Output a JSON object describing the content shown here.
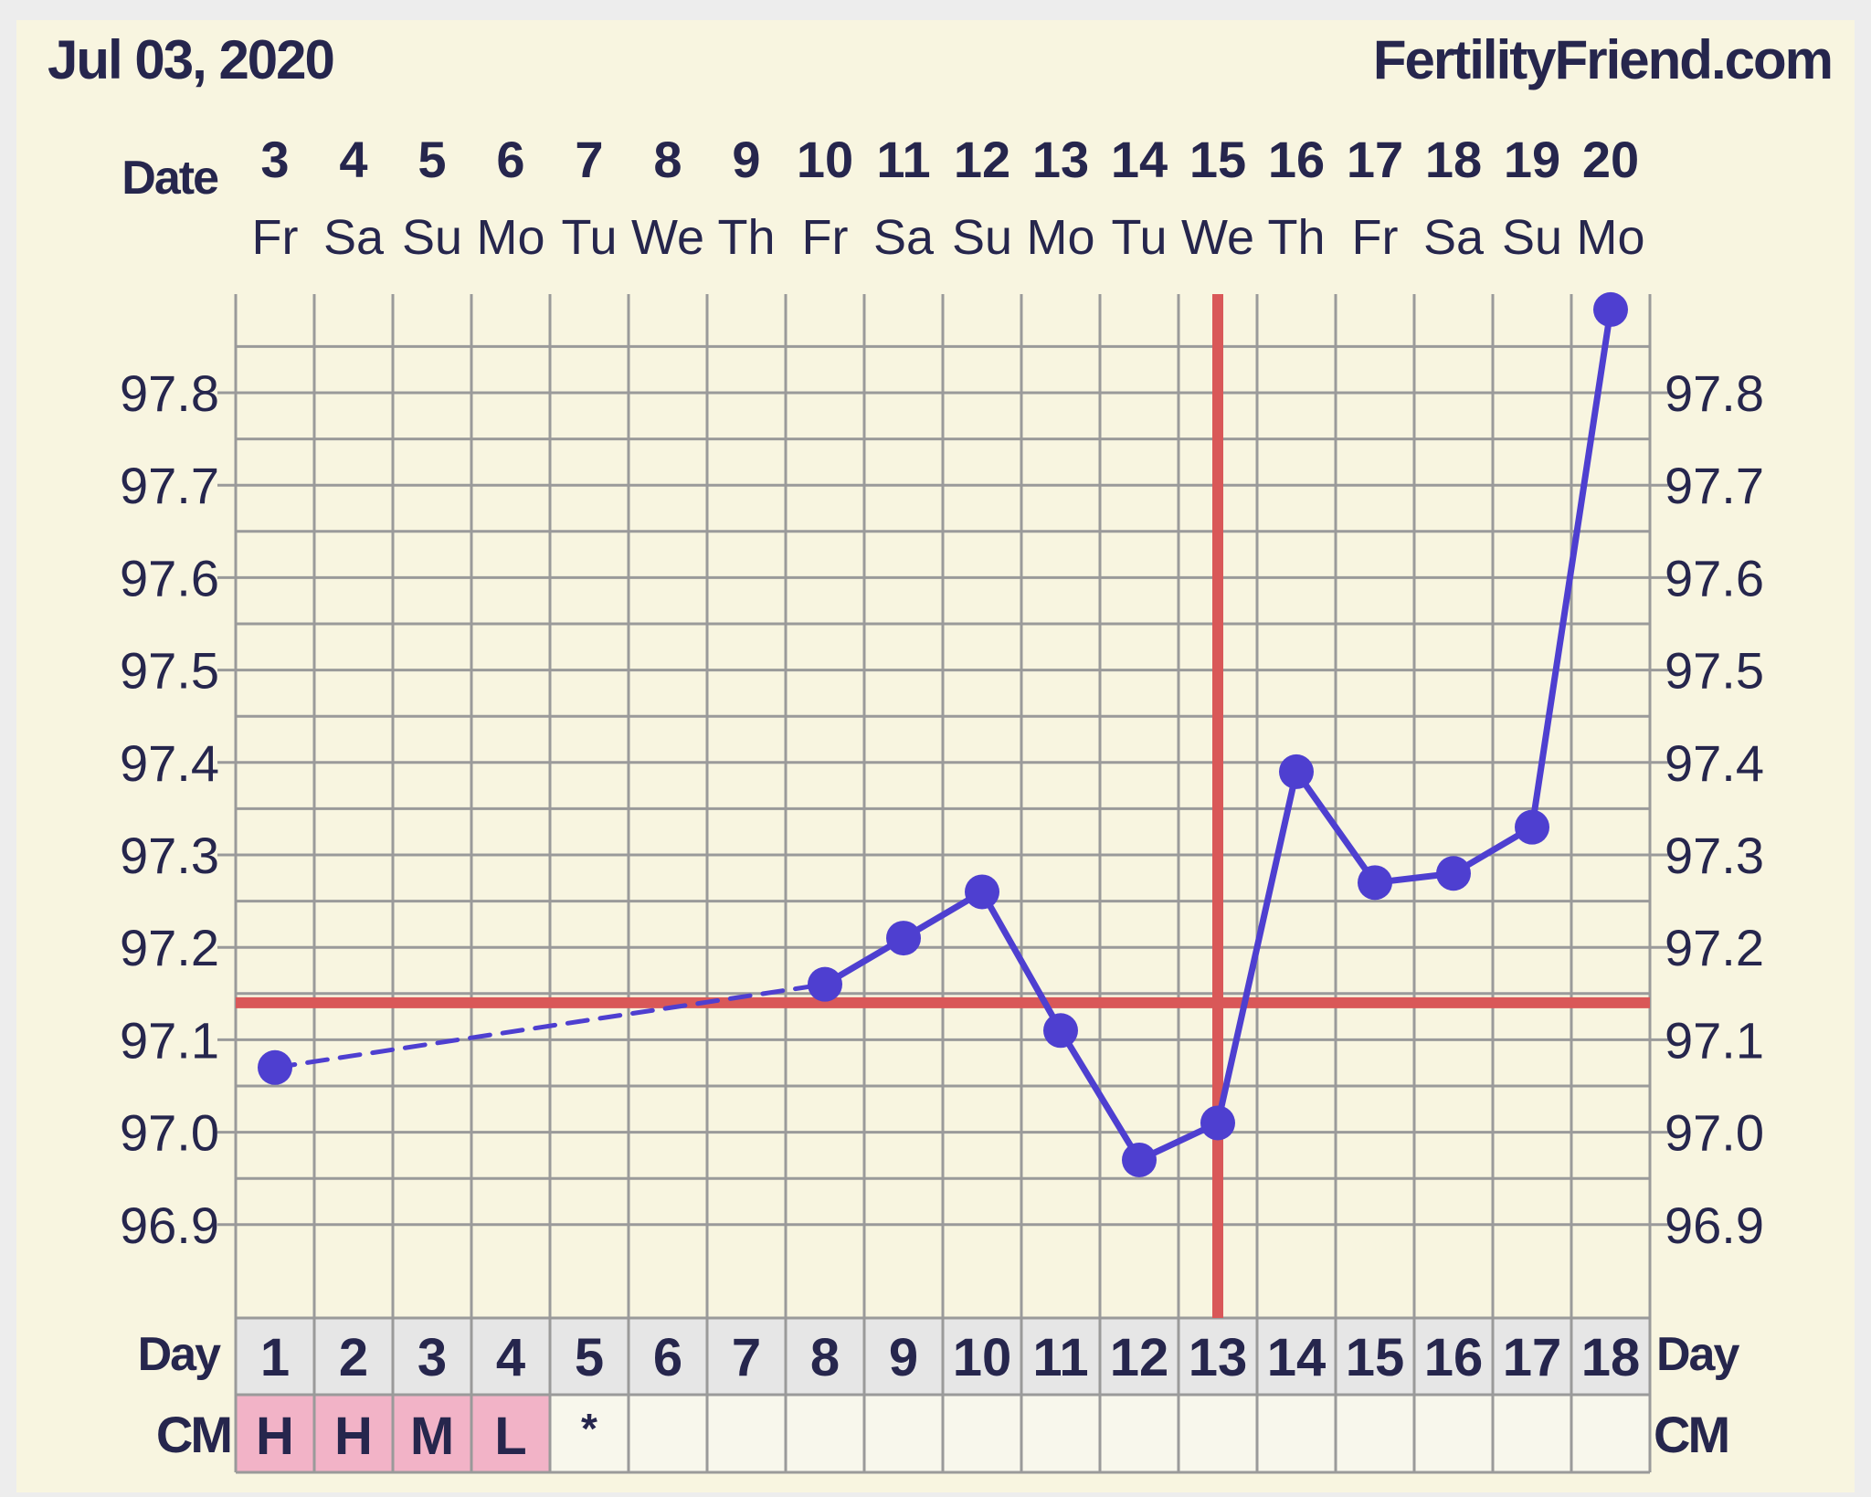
{
  "header": {
    "date": "Jul 03, 2020",
    "site": "FertilityFriend.com"
  },
  "labels": {
    "date_row": "Date",
    "day_row": "Day",
    "cm_row": "CM"
  },
  "colors": {
    "panel": "#f8f5e0",
    "frame": "#ededed",
    "grid": "#9a9a9a",
    "text": "#26264d",
    "series": "#4e3fd0",
    "coverline": "#d95858",
    "day_cell": "#e6e6e6",
    "cm_highlight": "#f2b3c7",
    "cm_empty": "#f8f7ec"
  },
  "chart_data": {
    "type": "line",
    "title": "",
    "xlabel": "Day",
    "ylabel": "",
    "dates": [
      "3",
      "4",
      "5",
      "6",
      "7",
      "8",
      "9",
      "10",
      "11",
      "12",
      "13",
      "14",
      "15",
      "16",
      "17",
      "18",
      "19",
      "20"
    ],
    "weekdays": [
      "Fr",
      "Sa",
      "Su",
      "Mo",
      "Tu",
      "We",
      "Th",
      "Fr",
      "Sa",
      "Su",
      "Mo",
      "Tu",
      "We",
      "Th",
      "Fr",
      "Sa",
      "Su",
      "Mo"
    ],
    "cycle_days": [
      1,
      2,
      3,
      4,
      5,
      6,
      7,
      8,
      9,
      10,
      11,
      12,
      13,
      14,
      15,
      16,
      17,
      18
    ],
    "y_ticks": [
      "97.8",
      "97.7",
      "97.6",
      "97.5",
      "97.4",
      "97.3",
      "97.2",
      "97.1",
      "97.0",
      "96.9"
    ],
    "ylim": [
      96.8,
      97.91
    ],
    "grid": true,
    "series": [
      {
        "points": [
          {
            "day": 1,
            "temp": 97.07
          },
          {
            "day": 8,
            "temp": 97.16
          },
          {
            "day": 9,
            "temp": 97.21
          },
          {
            "day": 10,
            "temp": 97.26
          },
          {
            "day": 11,
            "temp": 97.11
          },
          {
            "day": 12,
            "temp": 96.97
          },
          {
            "day": 13,
            "temp": 97.01
          },
          {
            "day": 14,
            "temp": 97.39
          },
          {
            "day": 15,
            "temp": 97.27
          },
          {
            "day": 16,
            "temp": 97.28
          },
          {
            "day": 17,
            "temp": 97.33
          },
          {
            "day": 18,
            "temp": 97.89
          }
        ],
        "dashed_gaps": [
          [
            1,
            8
          ]
        ]
      }
    ],
    "coverline_temp": 97.14,
    "ovulation_day": 13,
    "cm": [
      "H",
      "H",
      "M",
      "L",
      "*",
      "",
      "",
      "",
      "",
      "",
      "",
      "",
      "",
      "",
      "",
      "",
      "",
      ""
    ],
    "cm_highlight_days": [
      1,
      2,
      3,
      4
    ]
  }
}
